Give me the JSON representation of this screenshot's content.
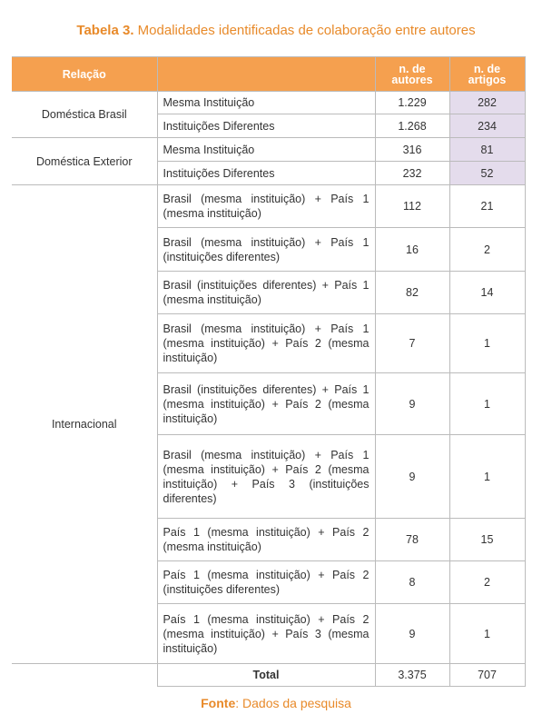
{
  "title": {
    "label": "Tabela 3.",
    "text": "Modalidades identificadas de colaboração entre autores"
  },
  "table": {
    "header": [
      "Relação",
      "n. de autores",
      "n. de artigos"
    ],
    "groups": [
      {
        "label": "Doméstica Brasil",
        "rows": [
          [
            "Mesma Instituição",
            "1.229",
            "282"
          ],
          [
            "Instituições Diferentes",
            "1.268",
            "234"
          ]
        ]
      },
      {
        "label": "Doméstica Exterior",
        "rows": [
          [
            "Mesma Instituição",
            "316",
            "81"
          ],
          [
            "Instituições Diferentes",
            "232",
            "52"
          ]
        ]
      },
      {
        "label": "Internacional",
        "rows": [
          [
            "Brasil (mesma instituição) + País 1 (mesma instituição)",
            "112",
            "21"
          ],
          [
            "Brasil (mesma instituição) + País 1 (instituições diferentes)",
            "16",
            "2"
          ],
          [
            "Brasil (instituições diferentes) + País 1 (mesma instituição)",
            "82",
            "14"
          ],
          [
            "Brasil (mesma instituição) + País 1 (mesma instituição) + País 2 (mesma instituição)",
            "7",
            "1"
          ],
          [
            "Brasil (instituições diferentes) + País 1 (mesma instituição) + País 2 (mesma instituição)",
            "9",
            "1"
          ],
          [
            "Brasil (mesma instituição) + País 1 (mesma instituição) + País 2 (mesma instituição) + País 3 (instituições diferentes)",
            "9",
            "1"
          ],
          [
            "País 1 (mesma instituição) + País 2 (mesma instituição)",
            "78",
            "15"
          ],
          [
            "País 1 (mesma instituição) + País 2 (instituições diferentes)",
            "8",
            "2"
          ],
          [
            "País 1 (mesma instituição) + País 2 (mesma instituição) + País 3 (mesma instituição)",
            "9",
            "1"
          ]
        ]
      }
    ],
    "total": [
      "Total",
      "3.375",
      "707"
    ]
  },
  "footer": {
    "label": "Fonte",
    "text": ": Dados da pesquisa"
  }
}
